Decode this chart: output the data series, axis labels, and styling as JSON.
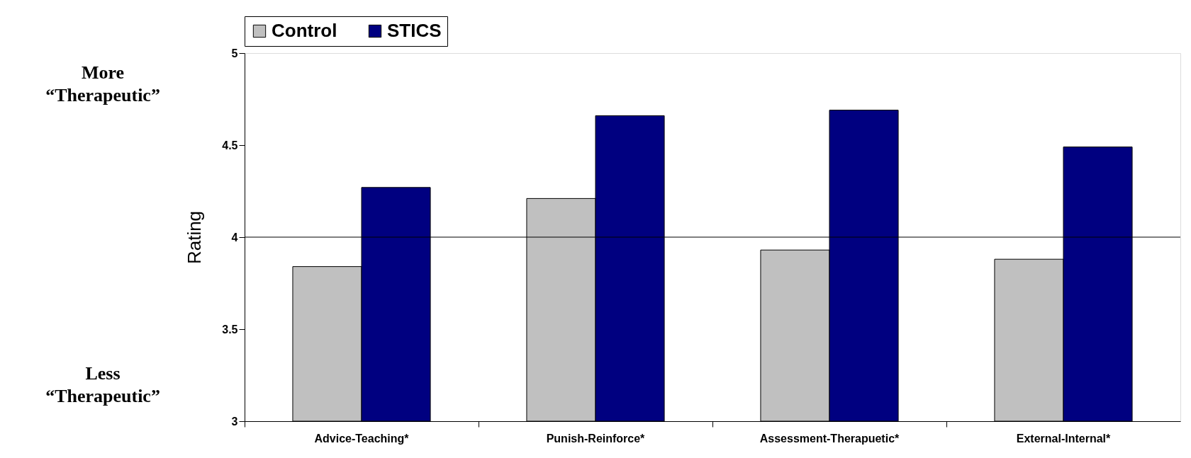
{
  "chart_data": {
    "type": "bar",
    "ylabel": "Rating",
    "categories": [
      "Advice-Teaching*",
      "Punish-Reinforce*",
      "Assessment-Therapuetic*",
      "External-Internal*"
    ],
    "series": [
      {
        "name": "Control",
        "color": "#c0c0c0",
        "values": [
          3.84,
          4.21,
          3.93,
          3.88
        ]
      },
      {
        "name": "STICS",
        "color": "#000080",
        "values": [
          4.27,
          4.66,
          4.69,
          4.49
        ]
      }
    ],
    "ylim": [
      3,
      5
    ],
    "yticks": [
      3,
      3.5,
      4,
      4.5,
      5
    ],
    "ref_lines": [
      {
        "axis": "y",
        "value": 4,
        "color": "#000000"
      }
    ],
    "annotations": [
      "More “Therapeutic”",
      "Less “Therapeutic”"
    ],
    "legend": "top",
    "grid": false
  }
}
